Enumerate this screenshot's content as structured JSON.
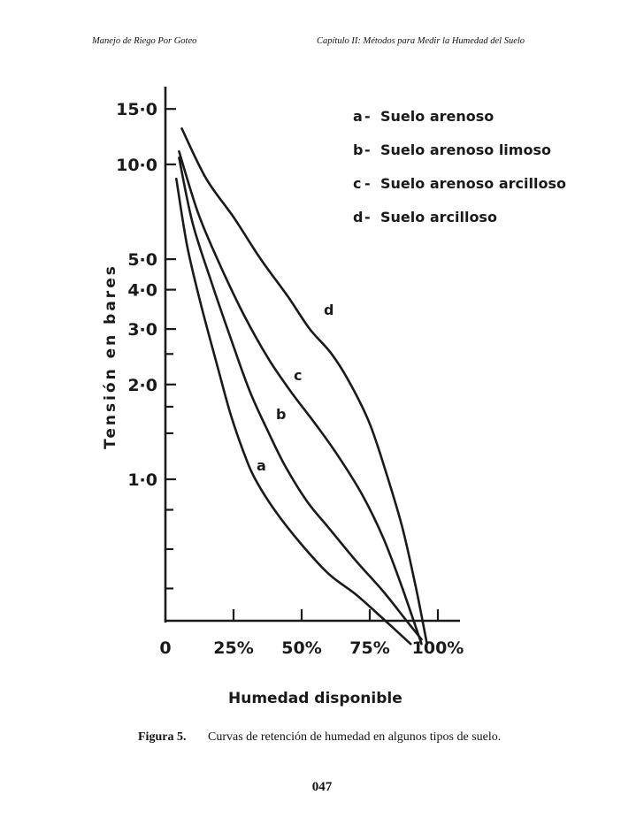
{
  "header": {
    "left": "Manejo de Riego Por Goteo",
    "right": "Capítulo II: Métodos para Medir la Humedad del Suelo"
  },
  "chart_data": {
    "type": "line",
    "xlabel": "Humedad disponible",
    "ylabel": "Tensión en bares",
    "x_ticks": [
      "0",
      "25%",
      "50%",
      "75%",
      "100%"
    ],
    "y_ticks": [
      "15·0",
      "10·0",
      "5·0",
      "4·0",
      "3·0",
      "2·0",
      "1·0"
    ],
    "y_scale": "log",
    "xlim": [
      0,
      100
    ],
    "legend_position": "top-right",
    "legend": [
      {
        "key": "a",
        "label": "Suelo arenoso"
      },
      {
        "key": "b",
        "label": "Suelo arenoso limoso"
      },
      {
        "key": "c",
        "label": "Suelo arenoso arcilloso"
      },
      {
        "key": "d",
        "label": "Suelo arcilloso"
      }
    ],
    "series": [
      {
        "name": "a",
        "x": [
          4,
          8,
          13,
          19,
          24,
          29,
          33,
          40,
          50,
          60,
          70,
          80,
          90
        ],
        "y": [
          9,
          5.5,
          3.6,
          2.3,
          1.6,
          1.2,
          1.0,
          0.8,
          0.62,
          0.5,
          0.43,
          0.36,
          0.3
        ]
      },
      {
        "name": "b",
        "x": [
          5,
          10,
          17,
          24,
          31,
          38,
          44,
          52,
          60,
          70,
          80,
          88,
          94
        ],
        "y": [
          10.5,
          6.5,
          4.2,
          2.8,
          1.9,
          1.4,
          1.1,
          0.85,
          0.7,
          0.55,
          0.44,
          0.36,
          0.31
        ]
      },
      {
        "name": "c",
        "x": [
          5,
          12,
          20,
          29,
          38,
          46,
          55,
          63,
          72,
          80,
          87,
          94
        ],
        "y": [
          11,
          7,
          4.8,
          3.3,
          2.4,
          1.9,
          1.5,
          1.2,
          0.9,
          0.65,
          0.45,
          0.3
        ]
      },
      {
        "name": "d",
        "x": [
          6,
          15,
          25,
          35,
          45,
          53,
          61,
          68,
          75,
          81,
          87,
          92,
          96
        ],
        "y": [
          13,
          9,
          6.8,
          5,
          3.8,
          3.0,
          2.5,
          2.0,
          1.5,
          1.05,
          0.7,
          0.45,
          0.3
        ]
      }
    ]
  },
  "caption": {
    "label": "Figura 5",
    "text": "Curvas de retención de humedad en algunos tipos de suelo."
  },
  "page_number": "047"
}
